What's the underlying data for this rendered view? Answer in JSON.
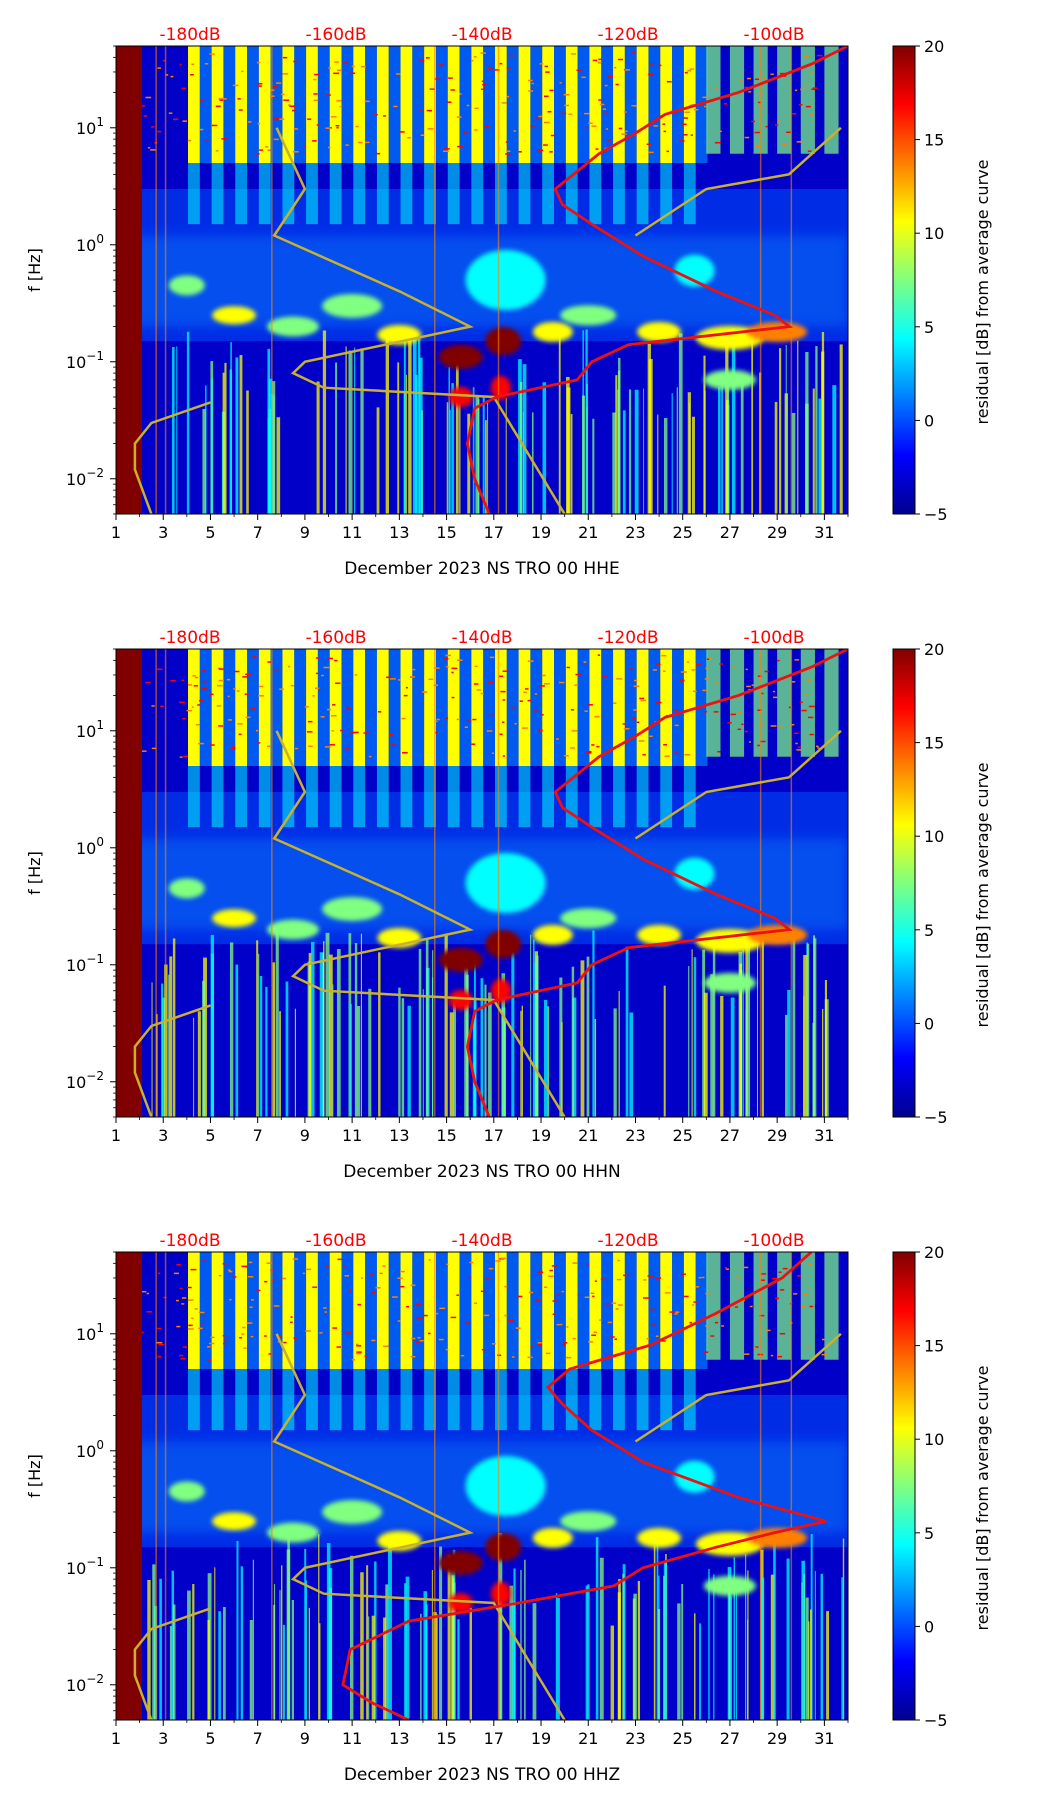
{
  "colormap": [
    "#00008f",
    "#0000ff",
    "#0080ff",
    "#00ffff",
    "#80ff80",
    "#ffff00",
    "#ff8000",
    "#ff0000",
    "#800000"
  ],
  "charts": [
    {
      "type": "heatmap",
      "title": "",
      "xlabel": "December 2023 NS TRO 00 HHE",
      "ylabel": "f [Hz]",
      "colorbar_label": "residual [dB] from average curve",
      "x_ticks": [
        "1",
        "3",
        "5",
        "7",
        "9",
        "11",
        "13",
        "15",
        "17",
        "19",
        "21",
        "23",
        "25",
        "27",
        "29",
        "31"
      ],
      "y_ticks": [
        {
          "value": 10,
          "label": "10",
          "exp": "1"
        },
        {
          "value": 1,
          "label": "10",
          "exp": "0"
        },
        {
          "value": 0.1,
          "label": "10",
          "exp": "−1"
        },
        {
          "value": 0.01,
          "label": "10",
          "exp": "−2"
        }
      ],
      "top_labels": [
        "-180dB",
        "-160dB",
        "-140dB",
        "-120dB",
        "-100dB"
      ],
      "colorbar_ticks": [
        "20",
        "15",
        "10",
        "5",
        "0",
        "−5"
      ],
      "xlim": [
        1,
        32
      ],
      "ylim_hz": [
        0.005,
        50
      ],
      "clim_db": [
        -5,
        20
      ],
      "db_axis": [
        -190,
        -90
      ],
      "red_curve_db_vs_hz": [
        [
          0.005,
          -139
        ],
        [
          0.01,
          -141
        ],
        [
          0.02,
          -142
        ],
        [
          0.04,
          -141
        ],
        [
          0.05,
          -138
        ],
        [
          0.07,
          -127
        ],
        [
          0.1,
          -125
        ],
        [
          0.14,
          -120
        ],
        [
          0.2,
          -98
        ],
        [
          0.25,
          -100
        ],
        [
          0.4,
          -108
        ],
        [
          0.8,
          -118
        ],
        [
          1.5,
          -125
        ],
        [
          2.2,
          -129
        ],
        [
          3,
          -130
        ],
        [
          6,
          -124
        ],
        [
          9,
          -119
        ],
        [
          13,
          -115
        ],
        [
          20,
          -105
        ],
        [
          35,
          -95
        ],
        [
          50,
          -90
        ]
      ],
      "yellow_curve_day_vs_hz": [
        [
          0.005,
          20
        ],
        [
          0.05,
          17
        ],
        [
          0.06,
          9.8
        ],
        [
          0.08,
          8.5
        ],
        [
          0.1,
          9
        ],
        [
          0.2,
          16
        ],
        [
          0.4,
          13
        ],
        [
          1.2,
          7.7
        ],
        [
          3,
          9
        ],
        [
          10,
          7.8
        ]
      ],
      "yellow_curve2_day_vs_hz": [
        [
          1.2,
          23
        ],
        [
          3,
          26
        ],
        [
          4,
          29.5
        ],
        [
          10,
          31.7
        ]
      ],
      "yellow_curve3_day_vs_hz": [
        [
          0.005,
          2.5
        ],
        [
          0.012,
          1.8
        ],
        [
          0.02,
          1.8
        ],
        [
          0.03,
          2.5
        ],
        [
          0.045,
          5
        ]
      ]
    },
    {
      "type": "heatmap",
      "title": "",
      "xlabel": "December 2023 NS TRO 00 HHN",
      "ylabel": "f [Hz]",
      "colorbar_label": "residual [dB] from average curve",
      "x_ticks": [
        "1",
        "3",
        "5",
        "7",
        "9",
        "11",
        "13",
        "15",
        "17",
        "19",
        "21",
        "23",
        "25",
        "27",
        "29",
        "31"
      ],
      "y_ticks": [
        {
          "value": 10,
          "label": "10",
          "exp": "1"
        },
        {
          "value": 1,
          "label": "10",
          "exp": "0"
        },
        {
          "value": 0.1,
          "label": "10",
          "exp": "−1"
        },
        {
          "value": 0.01,
          "label": "10",
          "exp": "−2"
        }
      ],
      "top_labels": [
        "-180dB",
        "-160dB",
        "-140dB",
        "-120dB",
        "-100dB"
      ],
      "colorbar_ticks": [
        "20",
        "15",
        "10",
        "5",
        "0",
        "−5"
      ],
      "xlim": [
        1,
        32
      ],
      "ylim_hz": [
        0.005,
        50
      ],
      "clim_db": [
        -5,
        20
      ],
      "db_axis": [
        -190,
        -90
      ],
      "red_curve_db_vs_hz": [
        [
          0.005,
          -139
        ],
        [
          0.01,
          -141
        ],
        [
          0.02,
          -142
        ],
        [
          0.04,
          -141
        ],
        [
          0.05,
          -138
        ],
        [
          0.07,
          -127
        ],
        [
          0.1,
          -125
        ],
        [
          0.14,
          -120
        ],
        [
          0.2,
          -98
        ],
        [
          0.25,
          -100
        ],
        [
          0.4,
          -108
        ],
        [
          0.8,
          -118
        ],
        [
          1.5,
          -125
        ],
        [
          2.2,
          -129
        ],
        [
          3,
          -130
        ],
        [
          6,
          -124
        ],
        [
          9,
          -119
        ],
        [
          13,
          -115
        ],
        [
          20,
          -105
        ],
        [
          35,
          -95
        ],
        [
          50,
          -90
        ]
      ],
      "yellow_curve_day_vs_hz": [
        [
          0.005,
          20
        ],
        [
          0.05,
          17
        ],
        [
          0.06,
          9.8
        ],
        [
          0.08,
          8.5
        ],
        [
          0.1,
          9
        ],
        [
          0.2,
          16
        ],
        [
          0.4,
          13
        ],
        [
          1.2,
          7.7
        ],
        [
          3,
          9
        ],
        [
          10,
          7.8
        ]
      ],
      "yellow_curve2_day_vs_hz": [
        [
          1.2,
          23
        ],
        [
          3,
          26
        ],
        [
          4,
          29.5
        ],
        [
          10,
          31.7
        ]
      ],
      "yellow_curve3_day_vs_hz": [
        [
          0.005,
          2.5
        ],
        [
          0.012,
          1.8
        ],
        [
          0.02,
          1.8
        ],
        [
          0.03,
          2.5
        ],
        [
          0.045,
          5
        ]
      ]
    },
    {
      "type": "heatmap",
      "title": "",
      "xlabel": "December 2023 NS TRO 00 HHZ",
      "ylabel": "f [Hz]",
      "colorbar_label": "residual [dB] from average curve",
      "x_ticks": [
        "1",
        "3",
        "5",
        "7",
        "9",
        "11",
        "13",
        "15",
        "17",
        "19",
        "21",
        "23",
        "25",
        "27",
        "29",
        "31"
      ],
      "y_ticks": [
        {
          "value": 10,
          "label": "10",
          "exp": "1"
        },
        {
          "value": 1,
          "label": "10",
          "exp": "0"
        },
        {
          "value": 0.1,
          "label": "10",
          "exp": "−1"
        },
        {
          "value": 0.01,
          "label": "10",
          "exp": "−2"
        }
      ],
      "top_labels": [
        "-180dB",
        "-160dB",
        "-140dB",
        "-120dB",
        "-100dB"
      ],
      "colorbar_ticks": [
        "20",
        "15",
        "10",
        "5",
        "0",
        "−5"
      ],
      "xlim": [
        1,
        32
      ],
      "ylim_hz": [
        0.005,
        50
      ],
      "clim_db": [
        -5,
        20
      ],
      "db_axis": [
        -190,
        -90
      ],
      "red_curve_db_vs_hz": [
        [
          0.005,
          -150
        ],
        [
          0.007,
          -155
        ],
        [
          0.01,
          -159
        ],
        [
          0.02,
          -158
        ],
        [
          0.035,
          -150
        ],
        [
          0.05,
          -135
        ],
        [
          0.07,
          -122
        ],
        [
          0.1,
          -118
        ],
        [
          0.15,
          -108
        ],
        [
          0.2,
          -100
        ],
        [
          0.25,
          -93
        ],
        [
          0.4,
          -105
        ],
        [
          0.8,
          -118
        ],
        [
          1.5,
          -125
        ],
        [
          2.5,
          -129
        ],
        [
          3.5,
          -131
        ],
        [
          5,
          -128
        ],
        [
          8,
          -117
        ],
        [
          15,
          -108
        ],
        [
          30,
          -99
        ],
        [
          50,
          -95
        ]
      ],
      "yellow_curve_day_vs_hz": [
        [
          0.005,
          20
        ],
        [
          0.05,
          17
        ],
        [
          0.06,
          9.8
        ],
        [
          0.08,
          8.5
        ],
        [
          0.1,
          9
        ],
        [
          0.2,
          16
        ],
        [
          0.4,
          13
        ],
        [
          1.2,
          7.7
        ],
        [
          3,
          9
        ],
        [
          10,
          7.8
        ]
      ],
      "yellow_curve2_day_vs_hz": [
        [
          1.2,
          23
        ],
        [
          3,
          26
        ],
        [
          4,
          29.5
        ],
        [
          10,
          31.7
        ]
      ],
      "yellow_curve3_day_vs_hz": [
        [
          0.005,
          2.5
        ],
        [
          0.012,
          1.8
        ],
        [
          0.02,
          1.8
        ],
        [
          0.03,
          2.5
        ],
        [
          0.045,
          5
        ]
      ]
    }
  ]
}
